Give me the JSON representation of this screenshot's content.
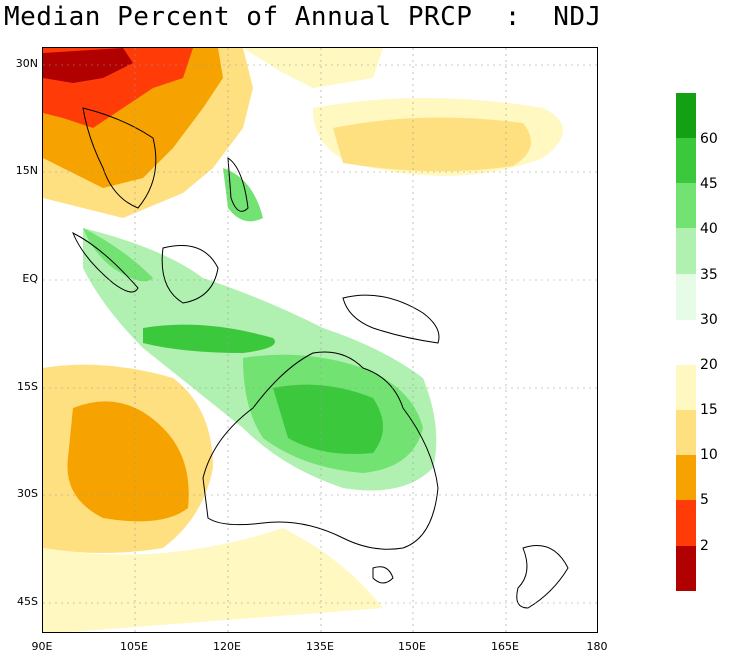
{
  "title": "Median Percent of Annual PRCP  :  NDJ",
  "axes": {
    "lat_labels": [
      "30N",
      "15N",
      "EQ",
      "15S",
      "30S",
      "45S"
    ],
    "lon_labels": [
      "90E",
      "105E",
      "120E",
      "135E",
      "150E",
      "165E",
      "180"
    ]
  },
  "legend_wet": {
    "labels": [
      "60",
      "45",
      "40",
      "35",
      "30"
    ],
    "colors": [
      "#13a013",
      "#3cc83c",
      "#72e272",
      "#b0f0b0",
      "#e6fce6"
    ]
  },
  "legend_dry": {
    "labels": [
      "20",
      "15",
      "10",
      "5",
      "2"
    ],
    "colors": [
      "#fff8c0",
      "#ffe080",
      "#f6a200",
      "#ff3c08",
      "#b00000"
    ]
  }
}
